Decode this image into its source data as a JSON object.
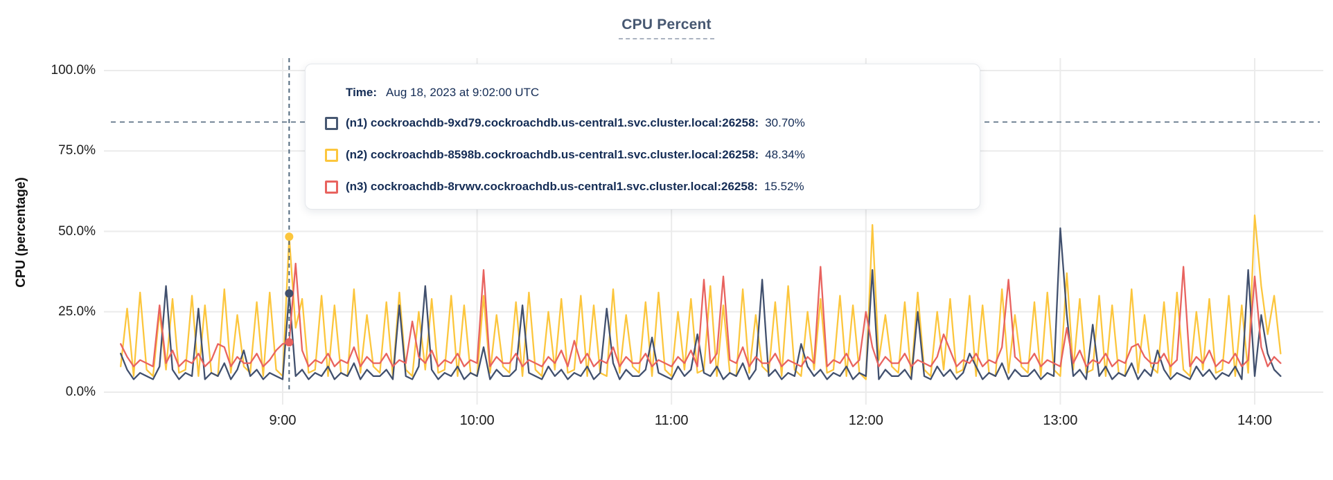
{
  "title": "CPU Percent",
  "y_axis": {
    "label": "CPU (percentage)",
    "ticks": [
      {
        "label": "100.0%",
        "value": 100
      },
      {
        "label": "75.0%",
        "value": 75
      },
      {
        "label": "50.0%",
        "value": 50
      },
      {
        "label": "25.0%",
        "value": 25
      },
      {
        "label": "0.0%",
        "value": 0
      }
    ]
  },
  "x_axis": {
    "ticks": [
      {
        "label": "9:00",
        "minute": 540
      },
      {
        "label": "10:00",
        "minute": 600
      },
      {
        "label": "11:00",
        "minute": 660
      },
      {
        "label": "12:00",
        "minute": 720
      },
      {
        "label": "13:00",
        "minute": 780
      },
      {
        "label": "14:00",
        "minute": 840
      }
    ]
  },
  "tooltip": {
    "time_label": "Time:",
    "time_value": "Aug 18, 2023 at 9:02:00 UTC",
    "rows": [
      {
        "host": "(n1) cockroachdb-9xd79.cockroachdb.us-central1.svc.cluster.local:26258:",
        "value": "30.70%",
        "color": "#475872"
      },
      {
        "host": "(n2) cockroachdb-8598b.cockroachdb.us-central1.svc.cluster.local:26258:",
        "value": "48.34%",
        "color": "#fcc63d"
      },
      {
        "host": "(n3) cockroachdb-8rvwv.cockroachdb.us-central1.svc.cluster.local:26258:",
        "value": "15.52%",
        "color": "#e8635f"
      }
    ]
  },
  "colors": {
    "n1_line": "#41506e",
    "n2_line": "#fcc63d",
    "n3_line": "#e8635f",
    "gridline": "#ebebeb",
    "crosshair": "#52697e",
    "threshold": "#52697e",
    "title": "#475872",
    "tooltip_text": "#142c55"
  },
  "chart_data": {
    "type": "line",
    "title": "CPU Percent",
    "ylabel": "CPU (percentage)",
    "ylim": [
      0,
      100
    ],
    "grid": true,
    "x_start_minute": 490,
    "x_step_minutes": 2,
    "threshold_line_pct": 84,
    "hover": {
      "index": 26,
      "time": "9:02"
    },
    "series": [
      {
        "name": "(n2) cockroachdb-8598b.cockroachdb.us-central1.svc.cluster.local:26258",
        "node": "n2",
        "color": "#fcc63d",
        "hover_value_pct": 48.34,
        "values": [
          8,
          26,
          5,
          31,
          7,
          5,
          25,
          7,
          29,
          6,
          7,
          30,
          5,
          27,
          6,
          5,
          32,
          6,
          24,
          8,
          6,
          28,
          5,
          31,
          7,
          5,
          48.34,
          20,
          29,
          6,
          7,
          30,
          5,
          27,
          6,
          5,
          32,
          6,
          24,
          8,
          6,
          28,
          5,
          31,
          7,
          5,
          25,
          7,
          29,
          6,
          7,
          30,
          5,
          27,
          6,
          5,
          30,
          6,
          24,
          8,
          6,
          28,
          5,
          31,
          7,
          5,
          25,
          7,
          29,
          6,
          7,
          30,
          5,
          27,
          6,
          5,
          32,
          6,
          24,
          8,
          6,
          28,
          5,
          31,
          7,
          5,
          25,
          7,
          29,
          6,
          7,
          33,
          5,
          27,
          6,
          5,
          32,
          6,
          24,
          8,
          6,
          28,
          5,
          33,
          7,
          5,
          25,
          7,
          29,
          6,
          7,
          30,
          5,
          27,
          6,
          4,
          52,
          10,
          24,
          8,
          6,
          28,
          5,
          31,
          7,
          5,
          25,
          7,
          29,
          6,
          7,
          30,
          5,
          27,
          6,
          5,
          32,
          6,
          24,
          8,
          6,
          28,
          5,
          31,
          7,
          5,
          37,
          7,
          29,
          6,
          7,
          30,
          5,
          27,
          6,
          5,
          32,
          6,
          24,
          8,
          6,
          28,
          5,
          31,
          7,
          5,
          25,
          7,
          29,
          6,
          7,
          30,
          5,
          27,
          6,
          55,
          33,
          18,
          30,
          12
        ]
      },
      {
        "name": "(n1) cockroachdb-9xd79.cockroachdb.us-central1.svc.cluster.local:26258",
        "node": "n1",
        "color": "#41506e",
        "hover_value_pct": 30.7,
        "values": [
          12,
          7,
          4,
          6,
          5,
          4,
          8,
          33,
          7,
          4,
          6,
          5,
          26,
          4,
          6,
          5,
          9,
          4,
          7,
          13,
          5,
          7,
          4,
          6,
          5,
          4,
          30.7,
          5,
          7,
          4,
          6,
          5,
          8,
          4,
          6,
          5,
          9,
          4,
          7,
          5,
          5,
          7,
          4,
          27,
          5,
          4,
          8,
          33,
          7,
          4,
          6,
          5,
          8,
          4,
          6,
          5,
          14,
          4,
          7,
          5,
          5,
          7,
          27,
          6,
          5,
          4,
          8,
          5,
          7,
          4,
          6,
          5,
          8,
          4,
          6,
          26,
          9,
          4,
          7,
          5,
          5,
          7,
          17,
          6,
          5,
          4,
          8,
          5,
          7,
          18,
          6,
          5,
          8,
          4,
          6,
          5,
          9,
          4,
          7,
          35,
          5,
          7,
          4,
          6,
          5,
          15,
          8,
          5,
          7,
          4,
          6,
          5,
          8,
          4,
          6,
          5,
          38,
          4,
          7,
          5,
          5,
          7,
          4,
          25,
          5,
          4,
          8,
          5,
          7,
          4,
          6,
          12,
          8,
          4,
          6,
          5,
          9,
          4,
          7,
          5,
          5,
          7,
          4,
          6,
          5,
          51,
          24,
          5,
          7,
          4,
          21,
          5,
          8,
          4,
          6,
          5,
          9,
          4,
          7,
          5,
          13,
          7,
          4,
          6,
          5,
          4,
          8,
          5,
          7,
          4,
          6,
          5,
          8,
          4,
          38,
          5,
          24,
          12,
          7,
          5
        ]
      },
      {
        "name": "(n3) cockroachdb-8rvwv.cockroachdb.us-central1.svc.cluster.local:26258",
        "node": "n3",
        "color": "#e8635f",
        "hover_value_pct": 15.52,
        "values": [
          15,
          11,
          8,
          10,
          9,
          8,
          27,
          9,
          13,
          8,
          10,
          9,
          12,
          8,
          10,
          15,
          14,
          8,
          11,
          9,
          9,
          12,
          8,
          10,
          13,
          15,
          15.52,
          40,
          13,
          8,
          10,
          9,
          12,
          8,
          10,
          9,
          14,
          8,
          11,
          9,
          9,
          12,
          8,
          10,
          9,
          22,
          11,
          9,
          13,
          8,
          10,
          9,
          12,
          8,
          10,
          9,
          38,
          8,
          11,
          9,
          9,
          12,
          8,
          10,
          9,
          8,
          11,
          9,
          13,
          8,
          16,
          9,
          12,
          8,
          10,
          9,
          14,
          8,
          11,
          9,
          9,
          12,
          8,
          10,
          9,
          8,
          11,
          9,
          13,
          8,
          35,
          9,
          12,
          36,
          10,
          9,
          14,
          8,
          11,
          9,
          9,
          12,
          8,
          10,
          9,
          8,
          11,
          9,
          39,
          8,
          10,
          9,
          12,
          8,
          10,
          25,
          14,
          8,
          11,
          9,
          9,
          12,
          8,
          10,
          9,
          8,
          11,
          18,
          13,
          8,
          10,
          9,
          12,
          8,
          10,
          9,
          14,
          35,
          11,
          9,
          9,
          12,
          8,
          10,
          9,
          8,
          20,
          9,
          13,
          8,
          10,
          9,
          12,
          8,
          10,
          9,
          14,
          15,
          11,
          9,
          9,
          12,
          8,
          10,
          39,
          8,
          11,
          9,
          13,
          8,
          10,
          9,
          12,
          8,
          10,
          36,
          14,
          8,
          11,
          9
        ]
      }
    ]
  }
}
